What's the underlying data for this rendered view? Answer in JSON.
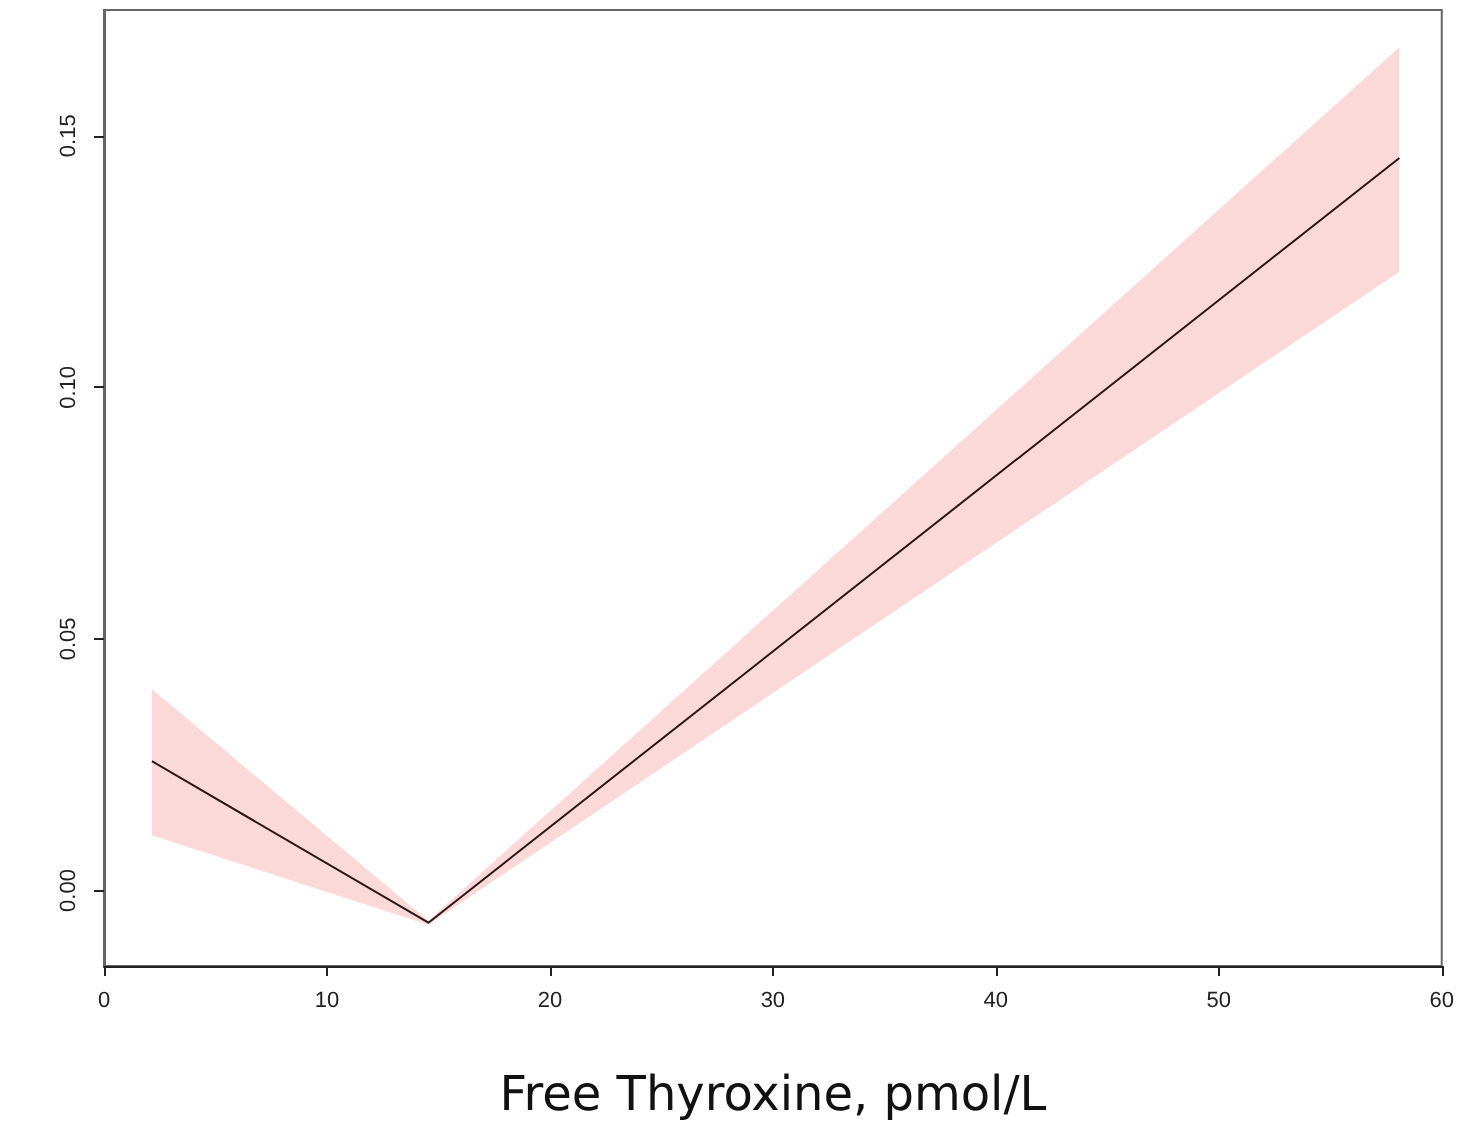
{
  "chart_data": {
    "type": "line",
    "xlabel": "Free Thyroxine, pmol/L",
    "series": [
      {
        "color": "#2b1515",
        "x": [
          2.15,
          14.55,
          58.1
        ],
        "values": [
          0.0257,
          -0.0064,
          0.1456
        ],
        "lower": [
          0.011,
          -0.0068,
          0.123
        ],
        "upper": [
          0.04,
          -0.006,
          0.1676
        ]
      }
    ],
    "xlim": [
      0,
      60
    ],
    "xticks": [
      0,
      10,
      20,
      30,
      40,
      50,
      60
    ],
    "ylim": [
      -0.015,
      0.175
    ],
    "yticks": [
      {
        "value": 0,
        "label": "0.00"
      },
      {
        "value": 0.05,
        "label": "0.05"
      },
      {
        "value": 0.1,
        "label": "0.10"
      },
      {
        "value": 0.15,
        "label": "0.15"
      }
    ],
    "grid": false,
    "marker": "none",
    "line_style": "solid"
  }
}
